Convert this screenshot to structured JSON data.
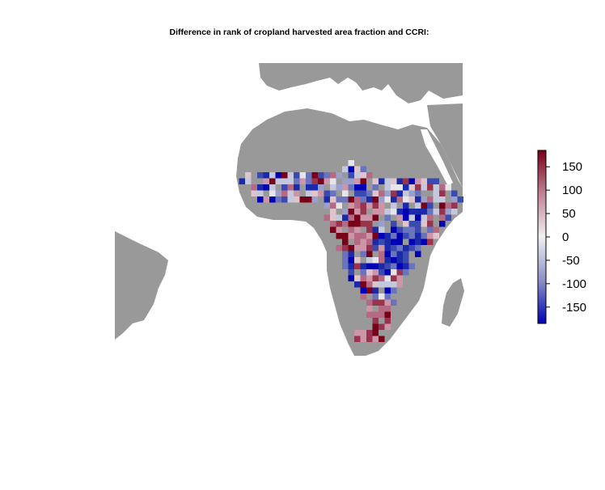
{
  "title": "Difference in rank of cropland harvested area fraction and CCRI:",
  "legend": {
    "ticks": [
      "150",
      "100",
      "50",
      "0",
      "-50",
      "-100",
      "-150"
    ],
    "tick_values": [
      150,
      100,
      50,
      0,
      -50,
      -100,
      -150
    ],
    "range": [
      -185,
      185
    ],
    "colors": {
      "low": "#0000b4",
      "mid": "#f0f0f0",
      "high": "#780018"
    }
  },
  "map": {
    "land_color": "#999999",
    "water_color": "#ffffff",
    "region": "Africa"
  }
}
